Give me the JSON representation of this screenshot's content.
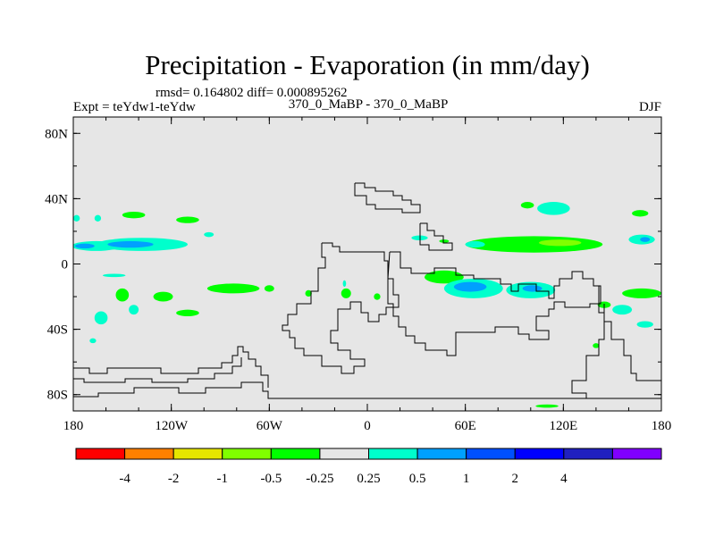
{
  "chart_data": {
    "type": "heatmap",
    "title": "Precipitation - Evaporation (in mm/day)",
    "stats": "rmsd= 0.164802  diff= 0.000895262",
    "left_label": "Expt = teYdw1-teYdw",
    "center_label": "370_0_MaBP - 370_0_MaBP",
    "right_label": "DJF",
    "xlim": [
      -180,
      180
    ],
    "ylim": [
      -90,
      90
    ],
    "x_ticks": [
      {
        "value": -180,
        "label": "180"
      },
      {
        "value": -120,
        "label": "120W"
      },
      {
        "value": -60,
        "label": "60W"
      },
      {
        "value": 0,
        "label": "0"
      },
      {
        "value": 60,
        "label": "60E"
      },
      {
        "value": 120,
        "label": "120E"
      },
      {
        "value": 180,
        "label": "180"
      }
    ],
    "y_ticks": [
      {
        "value": 80,
        "label": "80N"
      },
      {
        "value": 40,
        "label": "40N"
      },
      {
        "value": 0,
        "label": "0"
      },
      {
        "value": -40,
        "label": "40S"
      },
      {
        "value": -80,
        "label": "80S"
      }
    ],
    "background_color": "#e6e6e6",
    "colorbar": {
      "colors": [
        "#ff0000",
        "#ff8000",
        "#e6e600",
        "#80ff00",
        "#00ff00",
        "#e6e6e6",
        "#00ffcc",
        "#00a0ff",
        "#0050ff",
        "#0000ff",
        "#2020c0",
        "#8000ff"
      ],
      "labels": [
        {
          "after_box": 1,
          "label": "-4"
        },
        {
          "after_box": 2,
          "label": "-2"
        },
        {
          "after_box": 3,
          "label": "-1"
        },
        {
          "after_box": 4,
          "label": "-0.5"
        },
        {
          "after_box": 5,
          "label": "-0.25"
        },
        {
          "after_box": 6,
          "label": "0.25"
        },
        {
          "after_box": 7,
          "label": "0.5"
        },
        {
          "after_box": 8,
          "label": "1"
        },
        {
          "after_box": 9,
          "label": "2"
        },
        {
          "after_box": 10,
          "label": "4"
        }
      ]
    },
    "anomaly_regions": [
      {
        "name": "pac-west-band",
        "color": "#00ffcc",
        "lon": -166,
        "lat": 11,
        "rlon": 15,
        "rlat": 3
      },
      {
        "name": "pac-band-center",
        "color": "#00ffcc",
        "lon": -138,
        "lat": 12,
        "rlon": 28,
        "rlat": 4
      },
      {
        "name": "pac-band-core",
        "color": "#00a0ff",
        "lon": -145,
        "lat": 12,
        "rlon": 14,
        "rlat": 2
      },
      {
        "name": "pac-band-core-2",
        "color": "#00a0ff",
        "lon": -173,
        "lat": 11,
        "rlon": 6,
        "rlat": 1.5
      },
      {
        "name": "npac-green-1",
        "color": "#00ff00",
        "lon": -143,
        "lat": 30,
        "rlon": 7,
        "rlat": 2
      },
      {
        "name": "npac-green-2",
        "color": "#00ff00",
        "lon": -110,
        "lat": 27,
        "rlon": 7,
        "rlat": 2
      },
      {
        "name": "npac-cyan-1",
        "color": "#00ffcc",
        "lon": -178,
        "lat": 28,
        "rlon": 2,
        "rlat": 2
      },
      {
        "name": "npac-cyan-2",
        "color": "#00ffcc",
        "lon": -165,
        "lat": 28,
        "rlon": 2,
        "rlat": 2
      },
      {
        "name": "npac-cyan-3",
        "color": "#00ffcc",
        "lon": -97,
        "lat": 18,
        "rlon": 3,
        "rlat": 1.5
      },
      {
        "name": "epac-cyan-strip",
        "color": "#00ffcc",
        "lon": -155,
        "lat": -7,
        "rlon": 7,
        "rlat": 1
      },
      {
        "name": "spac-green-1",
        "color": "#00ff00",
        "lon": -150,
        "lat": -19,
        "rlon": 4,
        "rlat": 4
      },
      {
        "name": "spac-green-2",
        "color": "#00ff00",
        "lon": -125,
        "lat": -20,
        "rlon": 6,
        "rlat": 3
      },
      {
        "name": "spac-green-3",
        "color": "#00ff00",
        "lon": -110,
        "lat": -30,
        "rlon": 7,
        "rlat": 2
      },
      {
        "name": "spac-green-4",
        "color": "#00ff00",
        "lon": -82,
        "lat": -15,
        "rlon": 16,
        "rlat": 3
      },
      {
        "name": "spac-green-5",
        "color": "#00ff00",
        "lon": -60,
        "lat": -15,
        "rlon": 3,
        "rlat": 2
      },
      {
        "name": "spac-green-6",
        "color": "#00ff00",
        "lon": -36,
        "lat": -18,
        "rlon": 2,
        "rlat": 2
      },
      {
        "name": "spac-cyan-1",
        "color": "#00ffcc",
        "lon": -163,
        "lat": -33,
        "rlon": 4,
        "rlat": 4
      },
      {
        "name": "spac-cyan-2",
        "color": "#00ffcc",
        "lon": -143,
        "lat": -28,
        "rlon": 3,
        "rlat": 3
      },
      {
        "name": "spac-cyan-3",
        "color": "#00ffcc",
        "lon": -168,
        "lat": -47,
        "rlon": 2,
        "rlat": 1.5
      },
      {
        "name": "brazil-green",
        "color": "#00ff00",
        "lon": -13,
        "lat": -18,
        "rlon": 3,
        "rlat": 3
      },
      {
        "name": "brazil-cyan",
        "color": "#00ffcc",
        "lon": -14,
        "lat": -12,
        "rlon": 1,
        "rlat": 2
      },
      {
        "name": "satl-green",
        "color": "#00ff00",
        "lon": 6,
        "lat": -20,
        "rlon": 2,
        "rlat": 2
      },
      {
        "name": "natl-cyan",
        "color": "#00ffcc",
        "lon": 32,
        "lat": 16,
        "rlon": 5,
        "rlat": 1.5
      },
      {
        "name": "natl-green",
        "color": "#00ff00",
        "lon": 47,
        "lat": 14,
        "rlon": 3,
        "rlat": 1
      },
      {
        "name": "africa-green",
        "color": "#00ff00",
        "lon": 47,
        "lat": -8,
        "rlon": 12,
        "rlat": 4
      },
      {
        "name": "indian-cyan",
        "color": "#00ffcc",
        "lon": 65,
        "lat": -15,
        "rlon": 18,
        "rlat": 6
      },
      {
        "name": "indian-blue",
        "color": "#00a0ff",
        "lon": 63,
        "lat": -14,
        "rlon": 10,
        "rlat": 3
      },
      {
        "name": "mada-cyan",
        "color": "#00ffcc",
        "lon": 100,
        "lat": -16,
        "rlon": 15,
        "rlat": 5
      },
      {
        "name": "mada-blue",
        "color": "#00a0ff",
        "lon": 101,
        "lat": -15,
        "rlon": 6,
        "rlat": 2
      },
      {
        "name": "indo-green-band",
        "color": "#00ff00",
        "lon": 102,
        "lat": 12,
        "rlon": 42,
        "rlat": 5
      },
      {
        "name": "indo-lime-core",
        "color": "#80ff00",
        "lon": 118,
        "lat": 13,
        "rlon": 13,
        "rlat": 2
      },
      {
        "name": "indo-cyan-west",
        "color": "#00ffcc",
        "lon": 66,
        "lat": 12,
        "rlon": 6,
        "rlat": 2
      },
      {
        "name": "wpac-cyan-north",
        "color": "#00ffcc",
        "lon": 114,
        "lat": 34,
        "rlon": 10,
        "rlat": 4
      },
      {
        "name": "wpac-green-north",
        "color": "#00ff00",
        "lon": 98,
        "lat": 36,
        "rlon": 4,
        "rlat": 2
      },
      {
        "name": "wpac-green-ne",
        "color": "#00ff00",
        "lon": 167,
        "lat": 31,
        "rlon": 5,
        "rlat": 2
      },
      {
        "name": "wpac-cyan-east",
        "color": "#00ffcc",
        "lon": 168,
        "lat": 15,
        "rlon": 8,
        "rlat": 3
      },
      {
        "name": "wpac-blue-east",
        "color": "#00a0ff",
        "lon": 170,
        "lat": 15,
        "rlon": 3,
        "rlat": 1.5
      },
      {
        "name": "swpac-green",
        "color": "#00ff00",
        "lon": 168,
        "lat": -18,
        "rlon": 12,
        "rlat": 3
      },
      {
        "name": "swpac-cyan",
        "color": "#00ffcc",
        "lon": 156,
        "lat": -28,
        "rlon": 6,
        "rlat": 3
      },
      {
        "name": "swpac-cyan-2",
        "color": "#00ffcc",
        "lon": 170,
        "lat": -37,
        "rlon": 5,
        "rlat": 2
      },
      {
        "name": "swpac-green-2",
        "color": "#00ff00",
        "lon": 145,
        "lat": -25,
        "rlon": 4,
        "rlat": 2
      },
      {
        "name": "south-green",
        "color": "#00ff00",
        "lon": 110,
        "lat": -87,
        "rlon": 7,
        "rlat": 1
      },
      {
        "name": "south-green-2",
        "color": "#00ff00",
        "lon": 140,
        "lat": -50,
        "rlon": 2,
        "rlat": 1.5
      }
    ]
  }
}
